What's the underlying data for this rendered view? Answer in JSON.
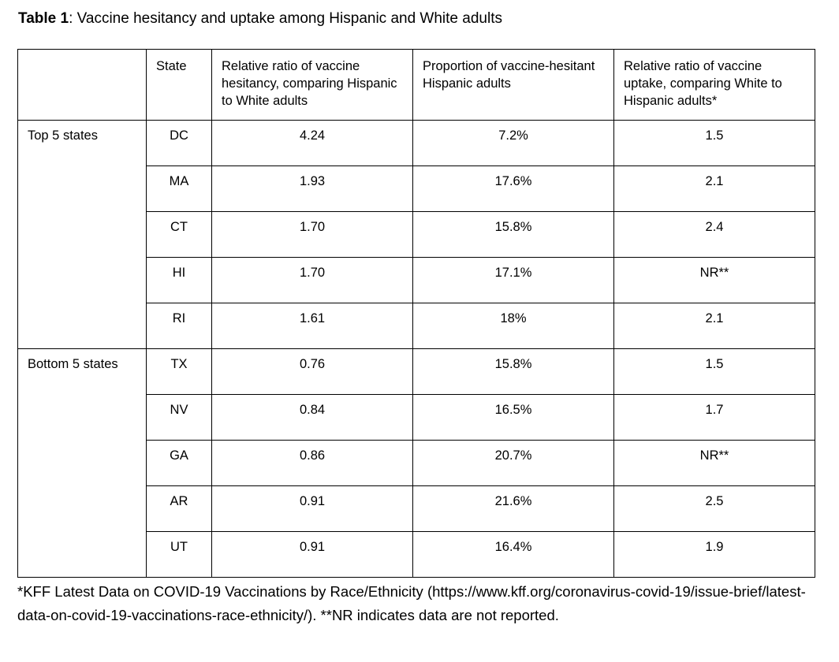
{
  "title": {
    "prefix": "Table 1",
    "rest": ": Vaccine hesitancy and uptake among Hispanic and White adults"
  },
  "table": {
    "headers": {
      "group": "",
      "state": "State",
      "hesitancy": "Relative ratio of vaccine hesitancy, comparing Hispanic to White adults",
      "proportion": "Proportion of vaccine-hesitant Hispanic adults",
      "uptake": "Relative ratio of vaccine uptake, comparing White to Hispanic adults*"
    },
    "groups": [
      {
        "label": "Top 5 states",
        "rows": [
          {
            "state": "DC",
            "hesitancy_ratio": "4.24",
            "proportion": "7.2%",
            "uptake_ratio": "1.5"
          },
          {
            "state": "MA",
            "hesitancy_ratio": "1.93",
            "proportion": "17.6%",
            "uptake_ratio": "2.1"
          },
          {
            "state": "CT",
            "hesitancy_ratio": "1.70",
            "proportion": "15.8%",
            "uptake_ratio": "2.4"
          },
          {
            "state": "HI",
            "hesitancy_ratio": "1.70",
            "proportion": "17.1%",
            "uptake_ratio": "NR**"
          },
          {
            "state": "RI",
            "hesitancy_ratio": "1.61",
            "proportion": "18%",
            "uptake_ratio": "2.1"
          }
        ]
      },
      {
        "label": "Bottom 5 states",
        "rows": [
          {
            "state": "TX",
            "hesitancy_ratio": "0.76",
            "proportion": "15.8%",
            "uptake_ratio": "1.5"
          },
          {
            "state": "NV",
            "hesitancy_ratio": "0.84",
            "proportion": "16.5%",
            "uptake_ratio": "1.7"
          },
          {
            "state": "GA",
            "hesitancy_ratio": "0.86",
            "proportion": "20.7%",
            "uptake_ratio": "NR**"
          },
          {
            "state": "AR",
            "hesitancy_ratio": "0.91",
            "proportion": "21.6%",
            "uptake_ratio": "2.5"
          },
          {
            "state": "UT",
            "hesitancy_ratio": "0.91",
            "proportion": "16.4%",
            "uptake_ratio": "1.9"
          }
        ]
      }
    ]
  },
  "footnote": {
    "text": "*KFF Latest Data on COVID-19 Vaccinations by Race/Ethnicity (https://www.kff.org/coronavirus-covid-19/issue-brief/latest-data-on-covid-19-vaccinations-race-ethnicity/). **NR indicates data are not reported."
  },
  "colors": {
    "background": "#ffffff",
    "text": "#000000",
    "border": "#000000"
  }
}
